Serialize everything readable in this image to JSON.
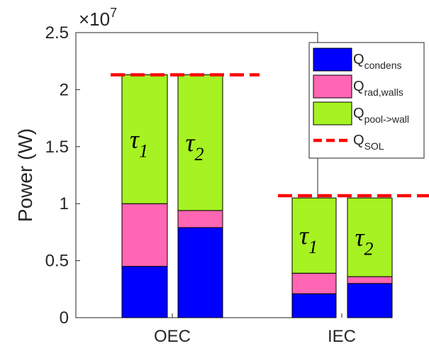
{
  "chart_data": {
    "type": "bar",
    "stacked": true,
    "ylabel": "Power (W)",
    "y_exponent_label": "×10",
    "y_exponent_power": "7",
    "ylim": [
      0,
      25000000
    ],
    "yticks": [
      0,
      5000000,
      10000000,
      15000000,
      20000000,
      25000000
    ],
    "ytick_labels": [
      "0",
      "0.5",
      "1",
      "1.5",
      "2",
      "2.5"
    ],
    "grid": false,
    "legend_position": "top-right",
    "groups": [
      {
        "name": "OEC",
        "q_sol": 21300000,
        "bars": [
          {
            "label": "τ",
            "subscript": "1",
            "values": [
              4500000,
              5500000,
              11300000
            ]
          },
          {
            "label": "τ",
            "subscript": "2",
            "values": [
              7900000,
              1500000,
              11900000
            ]
          }
        ]
      },
      {
        "name": "IEC",
        "q_sol": 10700000,
        "bars": [
          {
            "label": "τ",
            "subscript": "1",
            "values": [
              2100000,
              1800000,
              6600000
            ]
          },
          {
            "label": "τ",
            "subscript": "2",
            "values": [
              3000000,
              600000,
              6900000
            ]
          }
        ]
      }
    ],
    "series": [
      {
        "name": "Q",
        "subscript": "condens",
        "color": "#0000ff"
      },
      {
        "name": "Q",
        "subscript": "rad,walls",
        "color": "#ff66b3"
      },
      {
        "name": "Q",
        "subscript": "pool->wall",
        "color": "#a6f222"
      }
    ],
    "reference_line": {
      "name": "Q",
      "subscript": "SOL",
      "color": "#ff0000",
      "style": "dashed"
    }
  }
}
